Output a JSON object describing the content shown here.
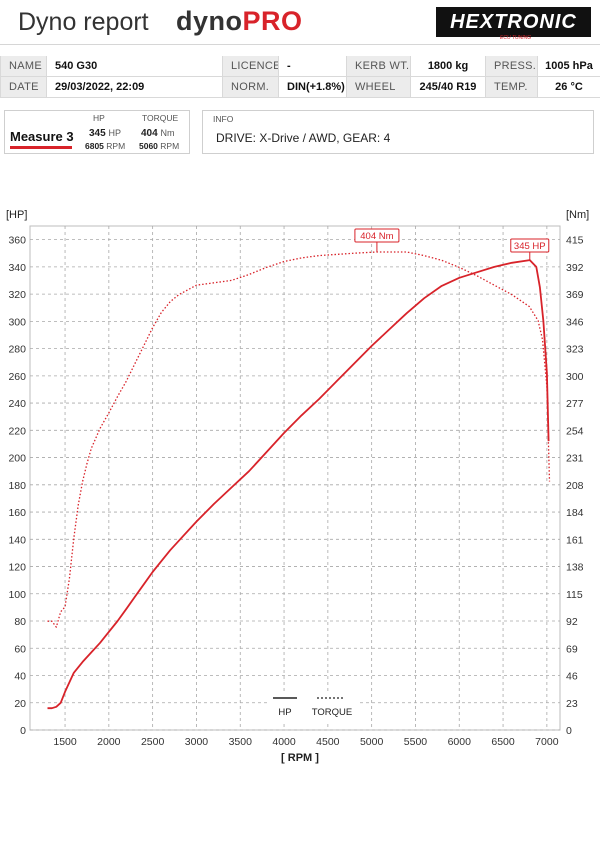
{
  "header": {
    "title": "Dyno report",
    "logo_part1": "dyno",
    "logo_part2": "PRO",
    "brand": "HEXTRONIC",
    "brand_sub": "ECU TUNING",
    "accent_color": "#d8232a"
  },
  "info": {
    "name_label": "NAME",
    "name_value": "540 G30",
    "licence_label": "LICENCE",
    "licence_value": "-",
    "kerb_label": "KERB WT.",
    "kerb_value": "1800 kg",
    "press_label": "PRESS.",
    "press_value": "1005 hPa",
    "date_label": "DATE",
    "date_value": "29/03/2022, 22:09",
    "norm_label": "NORM.",
    "norm_value": "DIN(+1.8%)",
    "wheel_label": "WHEEL",
    "wheel_value": "245/40 R19",
    "temp_label": "TEMP.",
    "temp_value": "26 °C"
  },
  "measure": {
    "name": "Measure 3",
    "hp_header": "HP",
    "torque_header": "TORQUE",
    "hp_value": "345",
    "hp_unit": "HP",
    "hp_rpm": "6805",
    "rpm_unit": "RPM",
    "torque_value": "404",
    "torque_unit": "Nm",
    "torque_rpm": "5060"
  },
  "drive": {
    "label": "INFO",
    "text": "DRIVE: X-Drive / AWD,  GEAR: 4"
  },
  "chart_data": {
    "type": "line",
    "xlabel": "[ RPM ]",
    "ylabel_left": "[HP]",
    "ylabel_right": "[Nm]",
    "xlim": [
      1100,
      7150
    ],
    "ylim_left": [
      0,
      370
    ],
    "ylim_right": [
      0,
      426
    ],
    "x_ticks": [
      1500,
      2000,
      2500,
      3000,
      3500,
      4000,
      4500,
      5000,
      5500,
      6000,
      6500,
      7000
    ],
    "y_ticks_left": [
      0,
      20,
      40,
      60,
      80,
      100,
      120,
      140,
      160,
      180,
      200,
      220,
      240,
      260,
      280,
      300,
      320,
      340,
      360
    ],
    "y_ticks_right": [
      0,
      23,
      46,
      69,
      92,
      115,
      138,
      161,
      184,
      208,
      231,
      254,
      277,
      300,
      323,
      346,
      369,
      392,
      415
    ],
    "grid": true,
    "legend_position": "bottom-center",
    "peak_labels": {
      "torque": "404 Nm",
      "hp": "345 HP"
    },
    "series": [
      {
        "name": "HP",
        "axis": "left",
        "style": "solid",
        "color": "#d8232a",
        "x": [
          1300,
          1350,
          1400,
          1450,
          1500,
          1600,
          1700,
          1800,
          1900,
          2000,
          2100,
          2200,
          2300,
          2400,
          2500,
          2600,
          2700,
          2800,
          3000,
          3200,
          3400,
          3600,
          3800,
          4000,
          4200,
          4400,
          4600,
          4800,
          5000,
          5200,
          5400,
          5600,
          5800,
          6000,
          6200,
          6400,
          6600,
          6805,
          6880,
          6920,
          6960,
          7000,
          7020
        ],
        "y": [
          16,
          16,
          17,
          20,
          28,
          42,
          50,
          57,
          64,
          72,
          80,
          89,
          98,
          107,
          116,
          124,
          132,
          139,
          153,
          166,
          178,
          190,
          204,
          218,
          231,
          243,
          256,
          269,
          282,
          294,
          306,
          317,
          326,
          332,
          336,
          340,
          343,
          345,
          340,
          325,
          300,
          262,
          212
        ]
      },
      {
        "name": "TORQUE",
        "axis": "right",
        "style": "dotted",
        "color": "#d8232a",
        "x": [
          1300,
          1350,
          1400,
          1450,
          1500,
          1550,
          1600,
          1650,
          1700,
          1750,
          1800,
          1900,
          2000,
          2100,
          2200,
          2300,
          2400,
          2500,
          2600,
          2700,
          2800,
          2900,
          3000,
          3200,
          3400,
          3600,
          3800,
          4000,
          4200,
          4400,
          4600,
          4800,
          5060,
          5400,
          5600,
          5800,
          6000,
          6200,
          6400,
          6600,
          6800,
          6900,
          6950,
          7000,
          7030
        ],
        "y": [
          92,
          92,
          87,
          100,
          104,
          128,
          162,
          190,
          210,
          225,
          238,
          255,
          268,
          282,
          295,
          310,
          325,
          340,
          353,
          362,
          368,
          372,
          376,
          378,
          380,
          385,
          391,
          396,
          399,
          401,
          402,
          403,
          404,
          404,
          401,
          397,
          391,
          384,
          376,
          368,
          358,
          346,
          330,
          290,
          210
        ]
      }
    ]
  }
}
